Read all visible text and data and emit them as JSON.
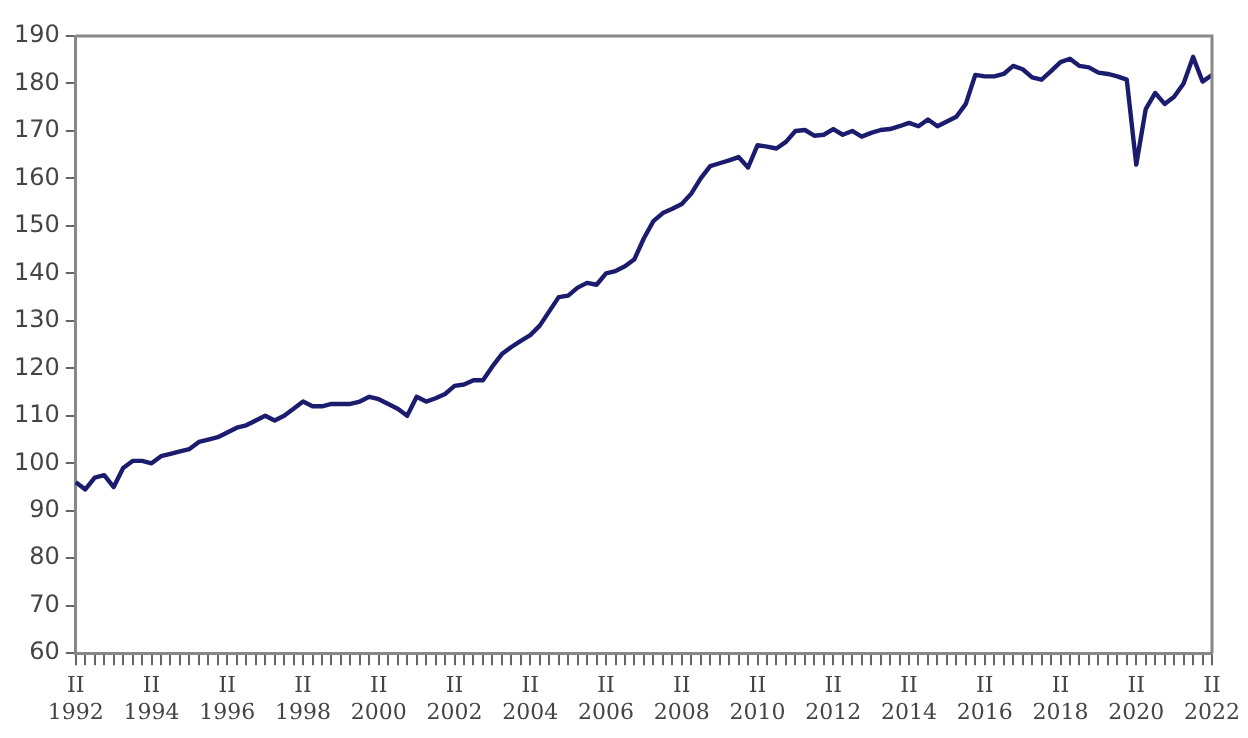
{
  "chart_data": {
    "type": "line",
    "categories": [
      "II 1992",
      null,
      null,
      null,
      null,
      null,
      null,
      null,
      "II 1994",
      null,
      null,
      null,
      null,
      null,
      null,
      null,
      "II 1996",
      null,
      null,
      null,
      null,
      null,
      null,
      null,
      "II 1998",
      null,
      null,
      null,
      null,
      null,
      null,
      null,
      "II 2000",
      null,
      null,
      null,
      null,
      null,
      null,
      null,
      "II 2002",
      null,
      null,
      null,
      null,
      null,
      null,
      null,
      "II 2004",
      null,
      null,
      null,
      null,
      null,
      null,
      null,
      "II 2006",
      null,
      null,
      null,
      null,
      null,
      null,
      null,
      "II 2008",
      null,
      null,
      null,
      null,
      null,
      null,
      null,
      "II 2010",
      null,
      null,
      null,
      null,
      null,
      null,
      null,
      "II 2012",
      null,
      null,
      null,
      null,
      null,
      null,
      null,
      "II 2014",
      null,
      null,
      null,
      null,
      null,
      null,
      null,
      "II 2016",
      null,
      null,
      null,
      null,
      null,
      null,
      null,
      "II 2018",
      null,
      null,
      null,
      null,
      null,
      null,
      null,
      "II 2020",
      null,
      null,
      null,
      null,
      null,
      null,
      null,
      "II 2022"
    ],
    "series": [
      {
        "color": "#1c1c6e",
        "values": [
          96,
          94.5,
          97,
          97.5,
          95,
          99,
          100.5,
          100.5,
          100,
          101.5,
          102,
          102.5,
          103,
          104.5,
          105,
          105.5,
          106.5,
          107.5,
          108,
          109,
          110,
          109,
          110,
          111.5,
          113,
          112,
          112,
          112.5,
          112.5,
          112.5,
          113,
          114,
          113.5,
          112.5,
          111.5,
          110,
          114,
          113,
          113.7,
          114.6,
          116.3,
          116.6,
          117.5,
          117.5,
          120.4,
          123,
          124.5,
          125.8,
          127,
          129,
          132,
          135,
          135.3,
          137,
          138,
          137.6,
          140,
          140.5,
          141.5,
          143,
          147.4,
          151,
          152.7,
          153.6,
          154.6,
          156.8,
          160,
          162.6,
          163.2,
          163.8,
          164.5,
          162.3,
          167,
          166.7,
          166.3,
          167.7,
          170,
          170.2,
          169,
          169.2,
          170.4,
          169.2,
          170,
          168.8,
          169.6,
          170.2,
          170.4,
          171,
          171.7,
          171,
          172.4,
          171,
          172,
          173,
          175.7,
          181.8,
          181.5,
          181.5,
          182,
          183.7,
          183,
          181.3,
          180.8,
          182.6,
          184.5,
          185.2,
          183.7,
          183.4,
          182.3,
          182,
          181.5,
          180.8,
          162.9,
          174.6,
          178,
          175.7,
          177.2,
          180,
          185.6,
          180.4,
          181.8
        ]
      }
    ],
    "ylim": [
      60,
      190
    ],
    "yticks": [
      60,
      70,
      80,
      90,
      100,
      110,
      120,
      130,
      140,
      150,
      160,
      170,
      180,
      190
    ],
    "grid": false,
    "marker": "none",
    "line_style": "solid"
  }
}
